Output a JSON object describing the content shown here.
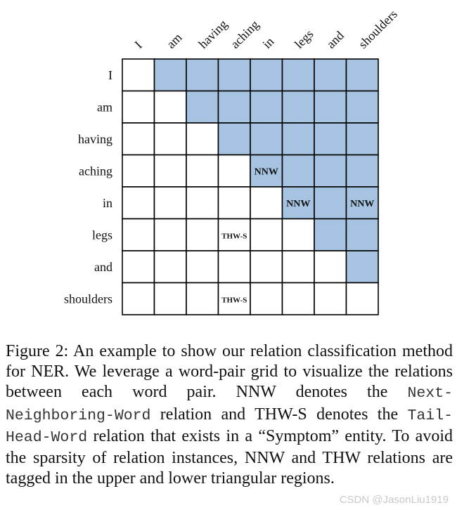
{
  "figure": {
    "words": [
      "I",
      "am",
      "having",
      "aching",
      "in",
      "legs",
      "and",
      "shoulders"
    ],
    "filled_color": "#a6c4e2",
    "empty_color": "#ffffff",
    "grid_line_color": "#000000",
    "tags": [
      {
        "row": 3,
        "col": 4,
        "text": "NNW"
      },
      {
        "row": 4,
        "col": 5,
        "text": "NNW"
      },
      {
        "row": 4,
        "col": 7,
        "text": "NNW"
      },
      {
        "row": 5,
        "col": 3,
        "text": "THW-S"
      },
      {
        "row": 7,
        "col": 3,
        "text": "THW-S"
      }
    ]
  },
  "caption": {
    "part1": "Figure 2: An example to show our relation classification method for NER. We leverage a word-pair grid to visualize the relations between each word pair. NNW denotes the ",
    "nnw_mono": "Next-Neighboring-Word",
    "part2": " relation and THW-S denotes the ",
    "thw_mono": "Tail-Head-Word",
    "part3": " relation that exists in a “Symptom” entity. To avoid the sparsity of relation instances, NNW and THW relations are tagged in the upper and lower triangular regions."
  },
  "watermark": "CSDN @JasonLiu1919"
}
